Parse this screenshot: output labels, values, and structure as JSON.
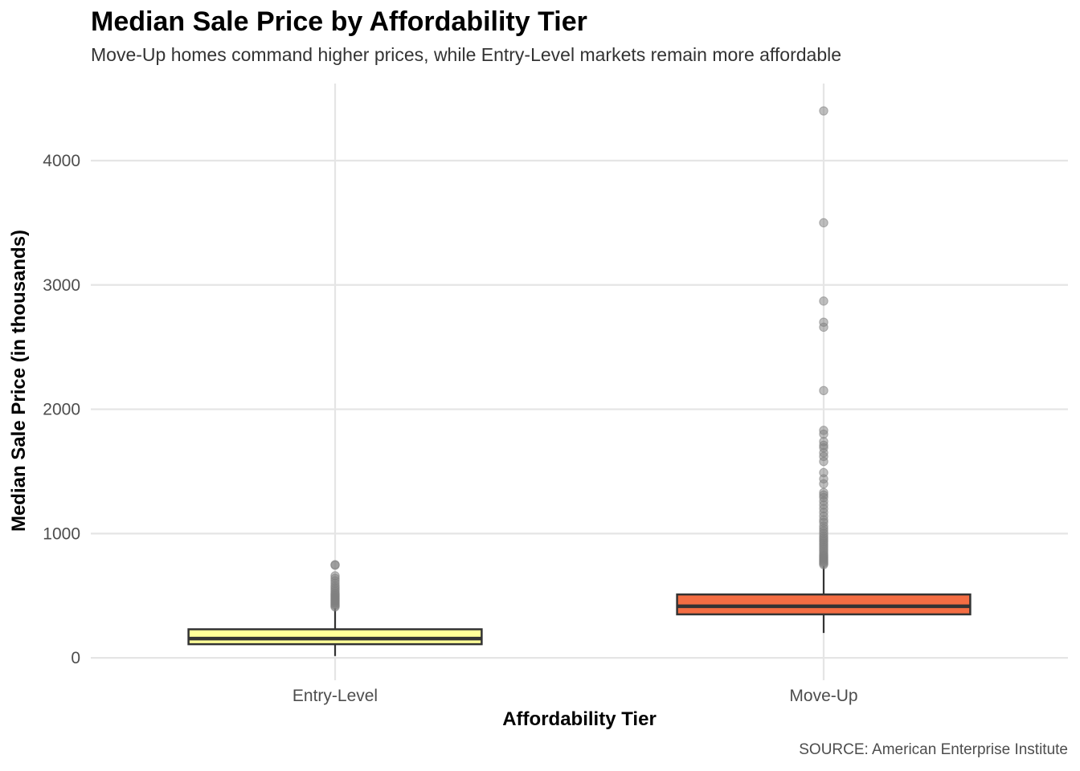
{
  "chart_data": {
    "type": "boxplot",
    "title": "Median Sale Price by Affordability Tier",
    "subtitle": "Move-Up homes command higher prices, while Entry-Level markets remain more affordable",
    "xlabel": "Affordability Tier",
    "ylabel": "Median Sale Price (in thousands)",
    "caption": "SOURCE: American Enterprise Institute",
    "ylim": [
      -180,
      4620
    ],
    "yticks": [
      0,
      1000,
      2000,
      3000,
      4000
    ],
    "grid": true,
    "legend": "none",
    "categories": [
      "Entry-Level",
      "Move-Up"
    ],
    "series": [
      {
        "category": "Entry-Level",
        "color": "#ffff99",
        "min": 15,
        "q1": 110,
        "median": 155,
        "q3": 230,
        "whisker_high": 400,
        "outliers": [
          410,
          420,
          430,
          440,
          450,
          460,
          470,
          480,
          490,
          500,
          510,
          520,
          535,
          550,
          565,
          580,
          600,
          620,
          640,
          660,
          745,
          750
        ]
      },
      {
        "category": "Move-Up",
        "color": "#f46d43",
        "min": 200,
        "q1": 350,
        "median": 415,
        "q3": 510,
        "whisker_high": 740,
        "outliers": [
          750,
          760,
          770,
          780,
          790,
          800,
          810,
          820,
          830,
          845,
          860,
          875,
          890,
          905,
          920,
          935,
          950,
          965,
          980,
          1000,
          1020,
          1040,
          1060,
          1090,
          1110,
          1140,
          1170,
          1200,
          1230,
          1260,
          1290,
          1310,
          1330,
          1400,
          1440,
          1490,
          1580,
          1620,
          1650,
          1690,
          1710,
          1740,
          1800,
          1830,
          2150,
          2660,
          2700,
          2870,
          3500,
          4400
        ]
      }
    ]
  }
}
